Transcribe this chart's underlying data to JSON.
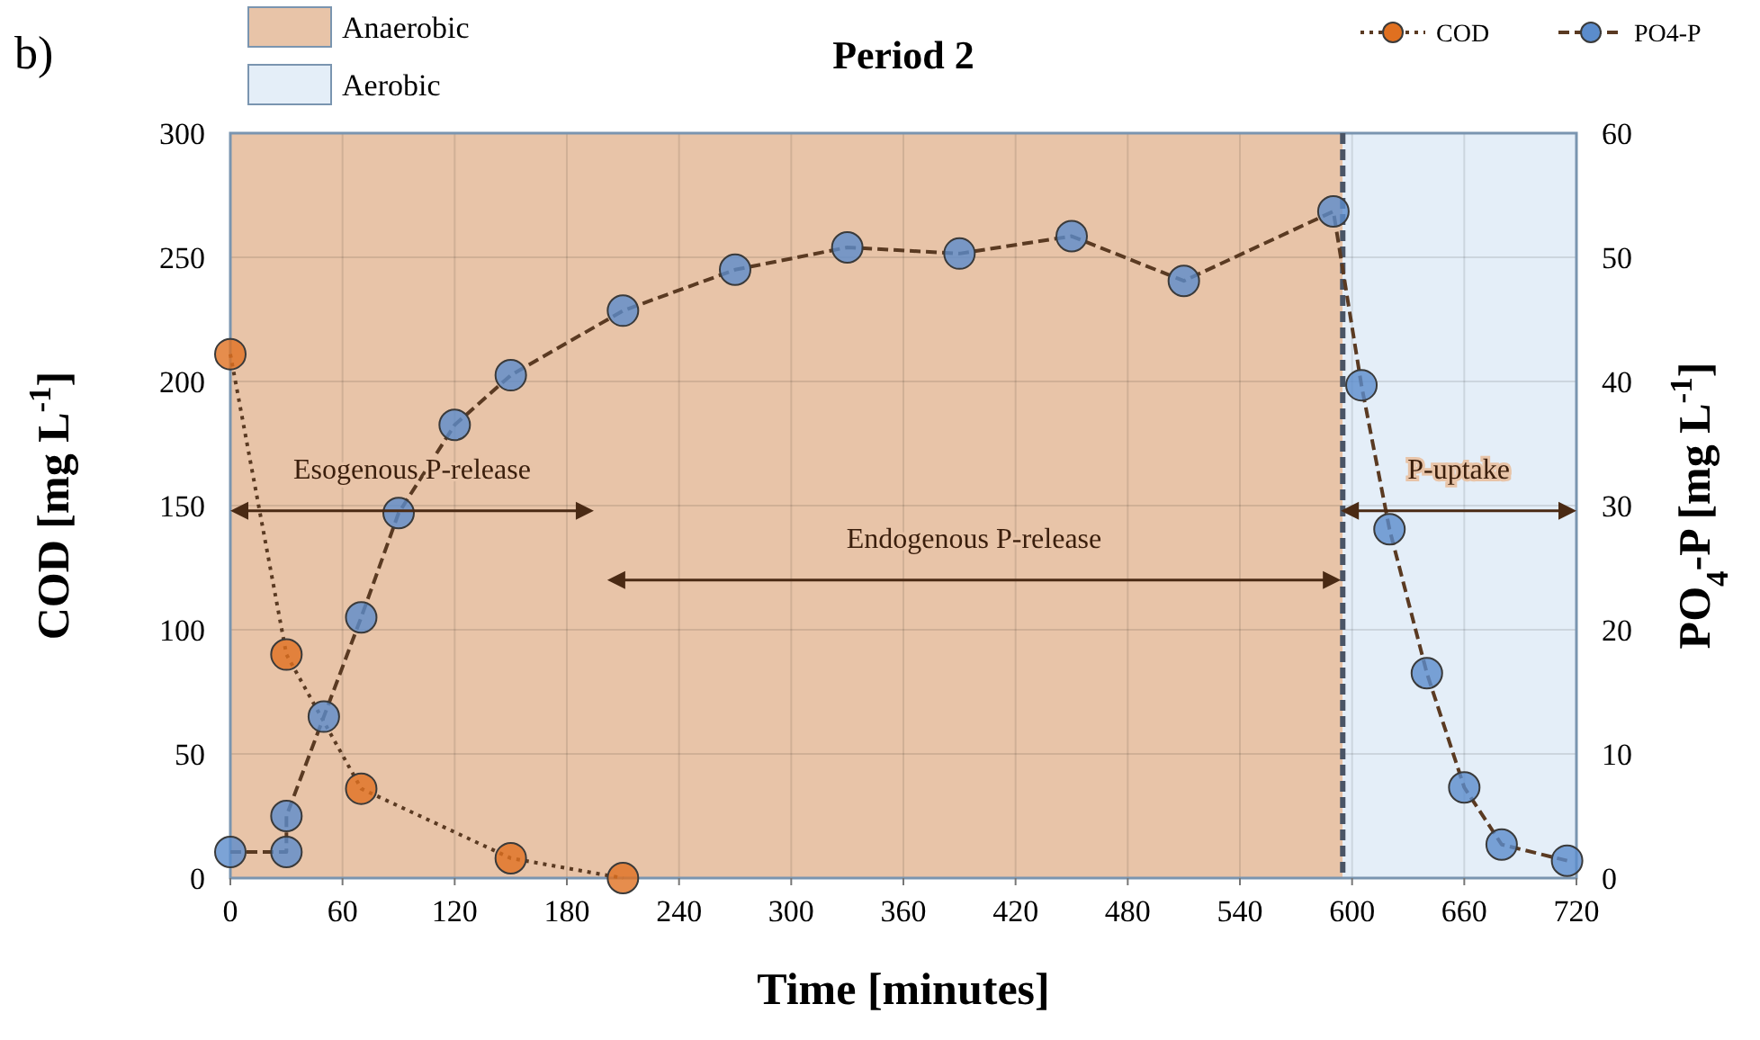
{
  "chart_data": {
    "type": "line",
    "title": "Period 2",
    "xlabel": "Time [minutes]",
    "ylabel": "COD [mg L$^{-1}$]",
    "y2label": "PO$_{4}$-P [mg L$^{-1}$]",
    "xlim": [
      0,
      720
    ],
    "xticks": [
      0,
      60,
      120,
      180,
      240,
      300,
      360,
      420,
      480,
      540,
      600,
      660,
      720
    ],
    "ylim": [
      0,
      300
    ],
    "yticks": [
      0,
      50,
      100,
      150,
      200,
      250,
      300
    ],
    "y2lim": [
      0,
      60
    ],
    "y2ticks": [
      0,
      10,
      20,
      30,
      40,
      50,
      60
    ],
    "grid": true,
    "marker": "circle",
    "legend": "top right",
    "series": [
      {
        "name": "COD",
        "color": "#e07020",
        "line_style": "dotted",
        "x": [
          0,
          30,
          70,
          150,
          210
        ],
        "values": [
          211,
          90,
          36,
          8,
          0
        ]
      },
      {
        "name": "PO4-P",
        "color": "#5b8ccc",
        "line_style": "dashed",
        "axis": "y2",
        "x": [
          0,
          30,
          30,
          50,
          70,
          90,
          120,
          150,
          210,
          270,
          330,
          390,
          450,
          510,
          590,
          605,
          620,
          640,
          660,
          680,
          715
        ],
        "values": [
          2.1,
          2.1,
          5,
          13,
          21,
          29.4,
          36.5,
          40.5,
          45.7,
          49,
          50.8,
          50.3,
          51.7,
          48.1,
          53.7,
          39.7,
          28.1,
          16.5,
          7.3,
          2.7,
          1.4
        ]
      }
    ],
    "bands": [
      {
        "axis": "x",
        "from": 0,
        "to": 595,
        "label": "Anaerobic",
        "color": "#e8c4a8"
      },
      {
        "axis": "x",
        "from": 595,
        "to": 720,
        "label": "Aerobic",
        "color": "#e4eef8"
      }
    ],
    "ref_lines": [
      {
        "axis": "x",
        "value": 595,
        "color": "#4a5566",
        "line_style": "dashed"
      }
    ],
    "annotations": [
      "b)",
      "Esogenous P-release",
      "Endogenous P-release",
      "P-uptake"
    ]
  }
}
